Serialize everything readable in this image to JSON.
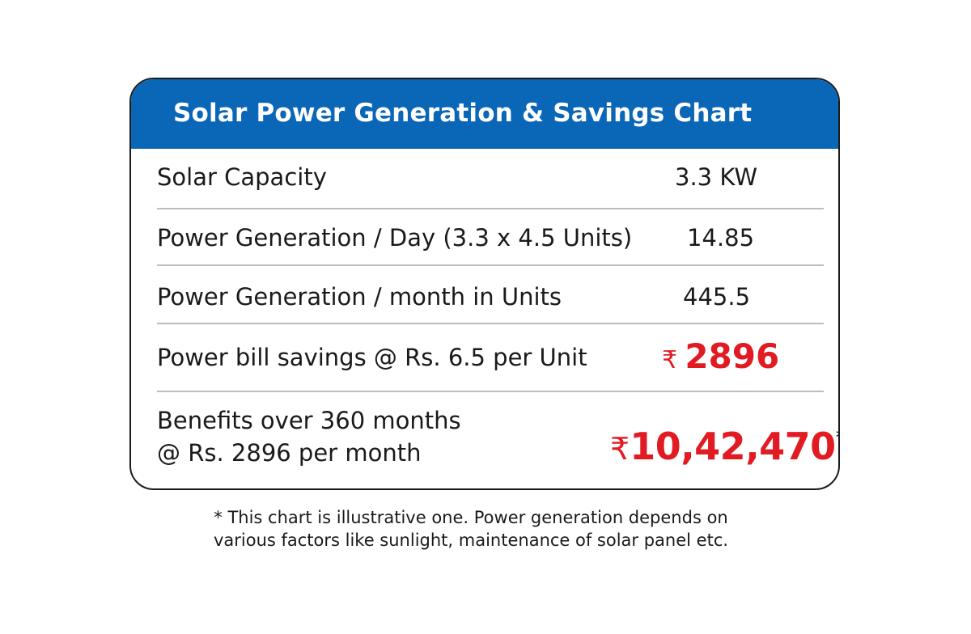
{
  "title": "Solar Power Generation & Savings Chart",
  "rows": [
    {
      "label": "Solar Capacity",
      "value": "3.3 KW"
    },
    {
      "label": "Power Generation / Day (3.3 x 4.5 Units)",
      "value": "14.85"
    },
    {
      "label": "Power Generation / month in Units",
      "value": "445.5"
    },
    {
      "label": "Power bill savings @ Rs. 6.5 per Unit",
      "currency": "₹",
      "value": "2896"
    },
    {
      "label_line1": "Benefits over 360 months",
      "label_line2": "@ Rs. 2896 per month",
      "currency": "₹",
      "value": "10,42,470",
      "mark": "*"
    }
  ],
  "footnote": {
    "line1": "* This chart is illustrative one. Power generation depends on",
    "line2": "various factors like  sunlight, maintenance of solar panel etc."
  },
  "colors": {
    "header": "#0a66b7",
    "highlight": "#e21b23",
    "divider": "#bdbdbd"
  }
}
